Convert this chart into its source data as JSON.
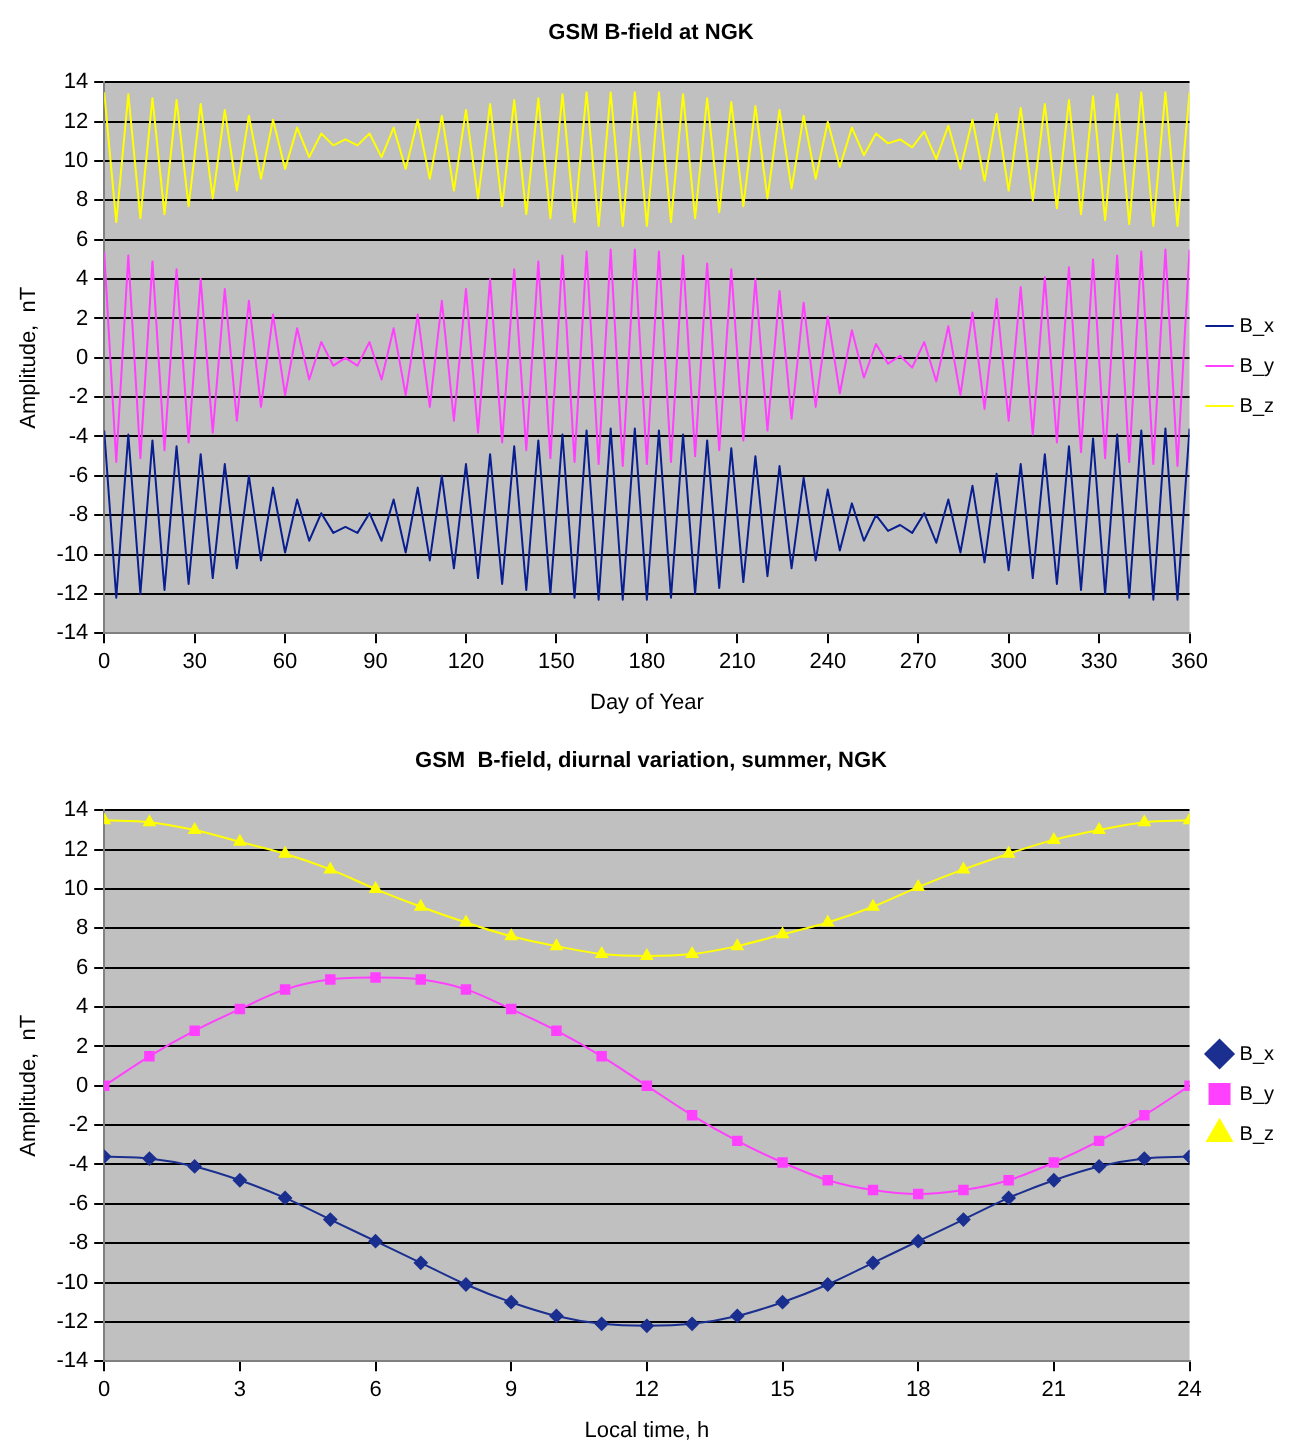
{
  "chart_data": [
    {
      "type": "line",
      "title": "GSM B-field at NGK",
      "xlabel": "Day of Year",
      "ylabel": "Amplitude,  nT",
      "xlim": [
        0,
        360
      ],
      "xticks": [
        0,
        30,
        60,
        90,
        120,
        150,
        180,
        210,
        240,
        270,
        300,
        330,
        360
      ],
      "ylim": [
        -14,
        14
      ],
      "yticks": [
        -14,
        -12,
        -10,
        -8,
        -6,
        -4,
        -2,
        0,
        2,
        4,
        6,
        8,
        10,
        12,
        14
      ],
      "grid": "y",
      "legend": "right",
      "marker": "none",
      "line_style": "solid",
      "x": [
        0,
        4,
        8,
        12,
        16,
        20,
        24,
        28,
        32,
        36,
        40,
        44,
        48,
        52,
        56,
        60,
        64,
        68,
        72,
        76,
        80,
        84,
        88,
        92,
        96,
        100,
        104,
        108,
        112,
        116,
        120,
        124,
        128,
        132,
        136,
        140,
        144,
        148,
        152,
        156,
        160,
        164,
        168,
        172,
        176,
        180,
        184,
        188,
        192,
        196,
        200,
        204,
        208,
        212,
        216,
        220,
        224,
        228,
        232,
        236,
        240,
        244,
        248,
        252,
        256,
        260,
        264,
        268,
        272,
        276,
        280,
        284,
        288,
        292,
        296,
        300,
        304,
        308,
        312,
        316,
        320,
        324,
        328,
        332,
        336,
        340,
        344,
        348,
        352,
        356,
        360
      ],
      "series": [
        {
          "name": "B_x",
          "color": "#0a1f8f",
          "values": [
            -3.7,
            -12.2,
            -3.9,
            -12.0,
            -4.2,
            -11.8,
            -4.5,
            -11.5,
            -4.9,
            -11.2,
            -5.4,
            -10.7,
            -6.0,
            -10.3,
            -6.6,
            -9.9,
            -7.2,
            -9.3,
            -7.9,
            -8.9,
            -8.6,
            -8.9,
            -7.9,
            -9.3,
            -7.2,
            -9.9,
            -6.6,
            -10.3,
            -6.0,
            -10.7,
            -5.4,
            -11.2,
            -4.9,
            -11.5,
            -4.5,
            -11.8,
            -4.2,
            -12.0,
            -3.9,
            -12.2,
            -3.7,
            -12.3,
            -3.6,
            -12.3,
            -3.6,
            -12.3,
            -3.7,
            -12.2,
            -3.9,
            -12.0,
            -4.2,
            -11.7,
            -4.6,
            -11.4,
            -5.0,
            -11.1,
            -5.5,
            -10.7,
            -6.1,
            -10.3,
            -6.7,
            -9.8,
            -7.4,
            -9.3,
            -8.0,
            -8.8,
            -8.5,
            -8.9,
            -7.9,
            -9.4,
            -7.2,
            -9.9,
            -6.5,
            -10.4,
            -5.9,
            -10.8,
            -5.4,
            -11.2,
            -4.9,
            -11.5,
            -4.5,
            -11.8,
            -4.1,
            -12.0,
            -3.9,
            -12.2,
            -3.7,
            -12.3,
            -3.6,
            -12.3,
            -3.6
          ]
        },
        {
          "name": "B_y",
          "color": "#ff40ff",
          "values": [
            5.4,
            -5.3,
            5.2,
            -5.1,
            4.9,
            -4.7,
            4.5,
            -4.3,
            4.0,
            -3.8,
            3.5,
            -3.2,
            2.9,
            -2.5,
            2.2,
            -1.9,
            1.5,
            -1.1,
            0.8,
            -0.4,
            0,
            -0.4,
            0.8,
            -1.1,
            1.5,
            -1.9,
            2.2,
            -2.5,
            2.9,
            -3.2,
            3.5,
            -3.8,
            4.0,
            -4.3,
            4.5,
            -4.7,
            4.9,
            -5.1,
            5.2,
            -5.3,
            5.4,
            -5.4,
            5.5,
            -5.5,
            5.5,
            -5.4,
            5.4,
            -5.3,
            5.2,
            -5.0,
            4.8,
            -4.7,
            4.5,
            -4.2,
            4.0,
            -3.7,
            3.4,
            -3.1,
            2.8,
            -2.5,
            2.1,
            -1.8,
            1.4,
            -1.0,
            0.7,
            -0.3,
            0.1,
            -0.5,
            0.8,
            -1.2,
            1.6,
            -1.9,
            2.3,
            -2.6,
            3.0,
            -3.2,
            3.6,
            -3.9,
            4.1,
            -4.3,
            4.6,
            -4.8,
            5.0,
            -5.1,
            5.2,
            -5.3,
            5.4,
            -5.4,
            5.5,
            -5.5,
            5.5
          ]
        },
        {
          "name": "B_z",
          "color": "#ffff00",
          "values": [
            13.5,
            6.9,
            13.4,
            7.1,
            13.2,
            7.3,
            13.1,
            7.7,
            12.9,
            8.1,
            12.6,
            8.5,
            12.3,
            9.1,
            12.1,
            9.6,
            11.7,
            10.2,
            11.4,
            10.8,
            11.1,
            10.8,
            11.4,
            10.2,
            11.7,
            9.6,
            12.1,
            9.1,
            12.3,
            8.5,
            12.6,
            8.1,
            12.9,
            7.7,
            13.1,
            7.3,
            13.2,
            7.1,
            13.4,
            6.9,
            13.5,
            6.7,
            13.5,
            6.7,
            13.5,
            6.7,
            13.5,
            6.9,
            13.4,
            7.1,
            13.2,
            7.4,
            13.0,
            7.7,
            12.8,
            8.1,
            12.6,
            8.6,
            12.3,
            9.1,
            12.0,
            9.7,
            11.7,
            10.3,
            11.4,
            10.9,
            11.1,
            10.7,
            11.5,
            10.1,
            11.8,
            9.6,
            12.1,
            9.0,
            12.4,
            8.5,
            12.7,
            8.0,
            12.9,
            7.6,
            13.1,
            7.3,
            13.3,
            7.0,
            13.4,
            6.8,
            13.5,
            6.7,
            13.5,
            6.7,
            13.5
          ]
        }
      ]
    },
    {
      "type": "line",
      "title": "GSM  B-field, diurnal variation, summer, NGK",
      "xlabel": "Local time, h",
      "ylabel": "Amplitude,  nT",
      "xlim": [
        0,
        24
      ],
      "xticks": [
        0,
        3,
        6,
        9,
        12,
        15,
        18,
        21,
        24
      ],
      "ylim": [
        -14,
        14
      ],
      "yticks": [
        -14,
        -12,
        -10,
        -8,
        -6,
        -4,
        -2,
        0,
        2,
        4,
        6,
        8,
        10,
        12,
        14
      ],
      "grid": "y",
      "legend": "right",
      "line_style": "solid",
      "x": [
        0,
        1,
        2,
        3,
        4,
        5,
        6,
        7,
        8,
        9,
        10,
        11,
        12,
        13,
        14,
        15,
        16,
        17,
        18,
        19,
        20,
        21,
        22,
        23,
        24
      ],
      "series": [
        {
          "name": "B_x",
          "color": "#1a2f8f",
          "marker": "diamond",
          "values": [
            -3.6,
            -3.7,
            -4.1,
            -4.8,
            -5.7,
            -6.8,
            -7.9,
            -9.0,
            -10.1,
            -11.0,
            -11.7,
            -12.1,
            -12.2,
            -12.1,
            -11.7,
            -11.0,
            -10.1,
            -9.0,
            -7.9,
            -6.8,
            -5.7,
            -4.8,
            -4.1,
            -3.7,
            -3.6
          ]
        },
        {
          "name": "B_y",
          "color": "#ff40ff",
          "marker": "square",
          "values": [
            0,
            1.5,
            2.8,
            3.9,
            4.9,
            5.4,
            5.5,
            5.4,
            4.9,
            3.9,
            2.8,
            1.5,
            0,
            -1.5,
            -2.8,
            -3.9,
            -4.8,
            -5.3,
            -5.5,
            -5.3,
            -4.8,
            -3.9,
            -2.8,
            -1.5,
            0
          ]
        },
        {
          "name": "B_z",
          "color": "#ffff00",
          "marker": "triangle",
          "values": [
            13.5,
            13.4,
            13.0,
            12.4,
            11.8,
            11.0,
            10.0,
            9.1,
            8.3,
            7.6,
            7.1,
            6.7,
            6.6,
            6.7,
            7.1,
            7.7,
            8.3,
            9.1,
            10.1,
            11.0,
            11.8,
            12.5,
            13.0,
            13.4,
            13.5
          ]
        }
      ]
    }
  ]
}
